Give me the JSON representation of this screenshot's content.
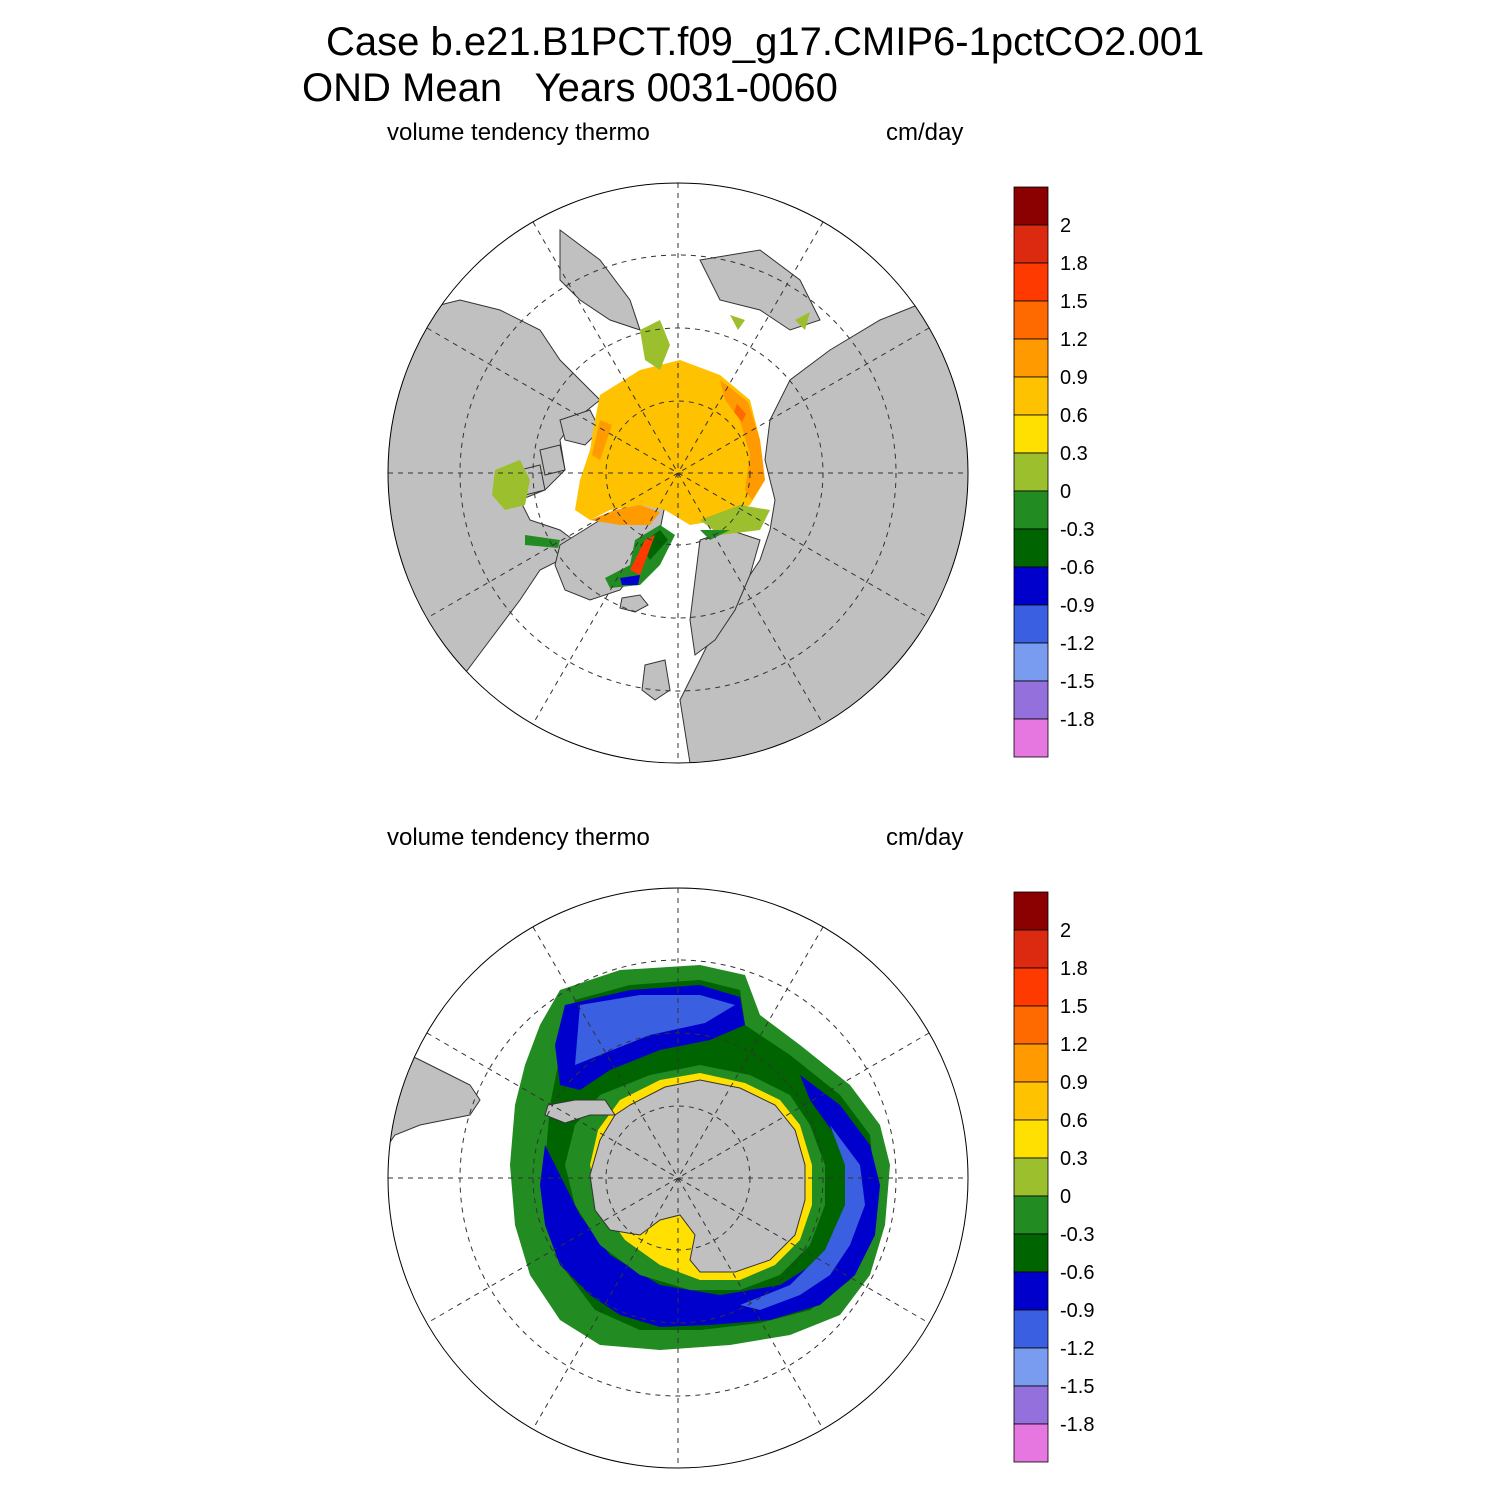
{
  "title_line1": "Case b.e21.B1PCT.f09_g17.CMIP6-1pctCO2.001",
  "title_line2": "OND Mean   Years 0031-0060",
  "panels": [
    {
      "id": "north",
      "hemisphere": "Arctic",
      "left_label": "volume tendency thermo",
      "right_label": "cm/day"
    },
    {
      "id": "south",
      "hemisphere": "Antarctic",
      "left_label": "volume tendency thermo",
      "right_label": "cm/day"
    }
  ],
  "colorbar": {
    "labels": [
      "2",
      "1.8",
      "1.5",
      "1.2",
      "0.9",
      "0.6",
      "0.3",
      "0",
      "-0.3",
      "-0.6",
      "-0.9",
      "-1.2",
      "-1.5",
      "-1.8"
    ],
    "colors": [
      "#8b0000",
      "#dc2a10",
      "#ff3a00",
      "#ff6a00",
      "#ff9a00",
      "#ffc200",
      "#ffe000",
      "#9cbf2e",
      "#228b22",
      "#006400",
      "#0000cd",
      "#3a5fe0",
      "#7a9cf0",
      "#9370db",
      "#e676e0"
    ]
  },
  "colors": {
    "land": "#c0c0c0",
    "ocean": "#ffffff"
  }
}
